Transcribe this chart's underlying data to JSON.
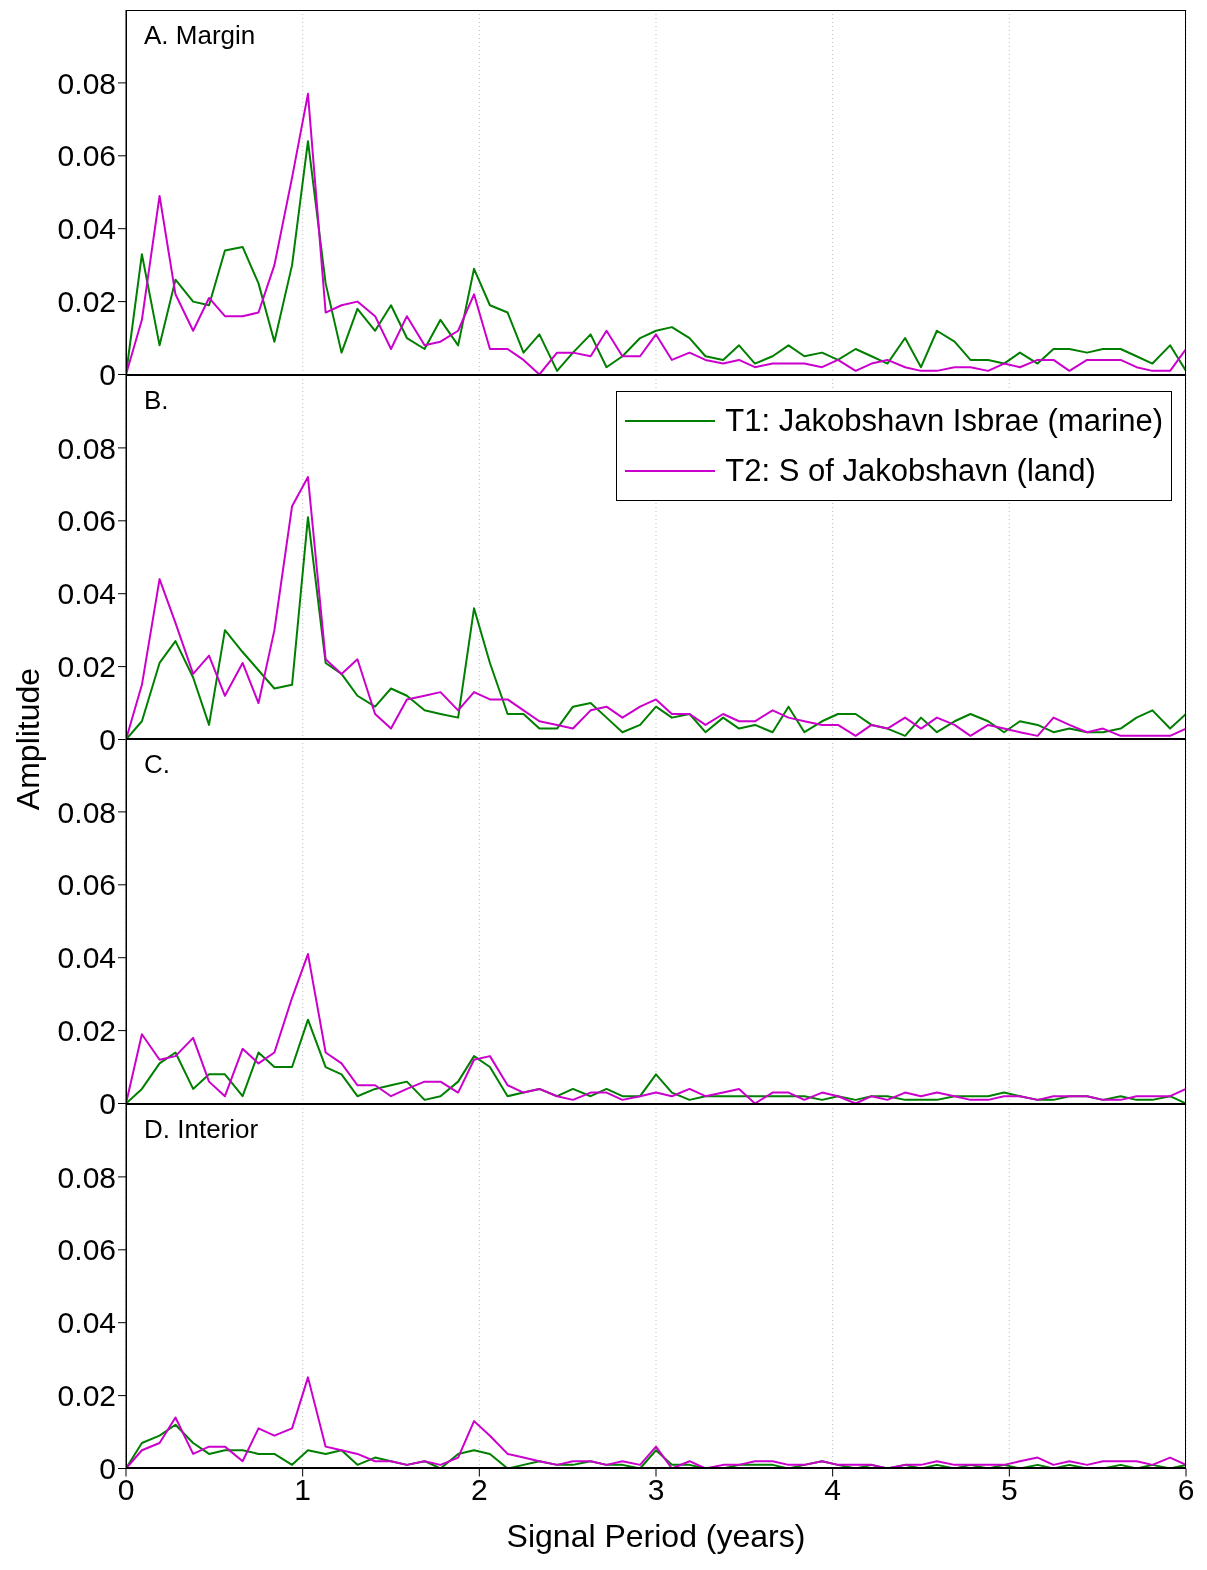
{
  "chart_data": [
    {
      "type": "line",
      "title": "A. Margin",
      "tick_labels": "y",
      "grid": "x",
      "xlim": [
        0,
        6
      ],
      "xticks": [
        0,
        1,
        2,
        3,
        4,
        5,
        6
      ],
      "ylim": [
        0,
        0.1
      ],
      "yticks": [
        0,
        0.02,
        0.04,
        0.06,
        0.08
      ],
      "x": [
        0,
        0.09,
        0.19,
        0.28,
        0.38,
        0.47,
        0.56,
        0.66,
        0.75,
        0.84,
        0.94,
        1.03,
        1.13,
        1.22,
        1.31,
        1.41,
        1.5,
        1.59,
        1.69,
        1.78,
        1.88,
        1.97,
        2.06,
        2.16,
        2.25,
        2.34,
        2.44,
        2.53,
        2.63,
        2.72,
        2.81,
        2.91,
        3.0,
        3.09,
        3.19,
        3.28,
        3.38,
        3.47,
        3.56,
        3.66,
        3.75,
        3.84,
        3.94,
        4.03,
        4.13,
        4.22,
        4.31,
        4.41,
        4.5,
        4.59,
        4.69,
        4.78,
        4.88,
        4.97,
        5.06,
        5.16,
        5.25,
        5.34,
        5.44,
        5.53,
        5.63,
        5.72,
        5.81,
        5.91,
        6.0
      ],
      "series": [
        {
          "color": "#007f00",
          "values": [
            0,
            0.033,
            0.008,
            0.026,
            0.02,
            0.019,
            0.034,
            0.035,
            0.025,
            0.009,
            0.03,
            0.064,
            0.025,
            0.006,
            0.018,
            0.012,
            0.019,
            0.01,
            0.007,
            0.015,
            0.008,
            0.029,
            0.019,
            0.017,
            0.006,
            0.011,
            0.001,
            0.006,
            0.011,
            0.002,
            0.005,
            0.01,
            0.012,
            0.013,
            0.01,
            0.005,
            0.004,
            0.008,
            0.003,
            0.005,
            0.008,
            0.005,
            0.006,
            0.004,
            0.007,
            0.005,
            0.003,
            0.01,
            0.002,
            0.012,
            0.009,
            0.004,
            0.004,
            0.003,
            0.006,
            0.003,
            0.007,
            0.007,
            0.006,
            0.007,
            0.007,
            0.005,
            0.003,
            0.008,
            0.001
          ]
        },
        {
          "color": "#cc00cc",
          "values": [
            0,
            0.015,
            0.049,
            0.022,
            0.012,
            0.021,
            0.016,
            0.016,
            0.017,
            0.03,
            0.054,
            0.077,
            0.017,
            0.019,
            0.02,
            0.016,
            0.007,
            0.016,
            0.008,
            0.009,
            0.012,
            0.022,
            0.007,
            0.007,
            0.004,
            0.0,
            0.006,
            0.006,
            0.005,
            0.012,
            0.005,
            0.005,
            0.011,
            0.004,
            0.006,
            0.004,
            0.003,
            0.004,
            0.002,
            0.003,
            0.003,
            0.003,
            0.002,
            0.004,
            0.001,
            0.003,
            0.004,
            0.002,
            0.001,
            0.001,
            0.002,
            0.002,
            0.001,
            0.003,
            0.002,
            0.004,
            0.004,
            0.001,
            0.004,
            0.004,
            0.004,
            0.002,
            0.001,
            0.001,
            0.007
          ]
        }
      ]
    },
    {
      "type": "line",
      "title": "B.",
      "ylabel": "Amplitude",
      "legend": "top right",
      "tick_labels": "y",
      "grid": "x",
      "xlim": [
        0,
        6
      ],
      "xticks": [
        0,
        1,
        2,
        3,
        4,
        5,
        6
      ],
      "ylim": [
        0,
        0.1
      ],
      "yticks": [
        0,
        0.02,
        0.04,
        0.06,
        0.08
      ],
      "x": [
        0,
        0.09,
        0.19,
        0.28,
        0.38,
        0.47,
        0.56,
        0.66,
        0.75,
        0.84,
        0.94,
        1.03,
        1.13,
        1.22,
        1.31,
        1.41,
        1.5,
        1.59,
        1.69,
        1.78,
        1.88,
        1.97,
        2.06,
        2.16,
        2.25,
        2.34,
        2.44,
        2.53,
        2.63,
        2.72,
        2.81,
        2.91,
        3.0,
        3.09,
        3.19,
        3.28,
        3.38,
        3.47,
        3.56,
        3.66,
        3.75,
        3.84,
        3.94,
        4.03,
        4.13,
        4.22,
        4.31,
        4.41,
        4.5,
        4.59,
        4.69,
        4.78,
        4.88,
        4.97,
        5.06,
        5.16,
        5.25,
        5.34,
        5.44,
        5.53,
        5.63,
        5.72,
        5.81,
        5.91,
        6.0
      ],
      "series": [
        {
          "name": "T1: Jakobshavn Isbrae (marine)",
          "color": "#007f00",
          "values": [
            0,
            0.005,
            0.021,
            0.027,
            0.017,
            0.004,
            0.03,
            0.024,
            0.019,
            0.014,
            0.015,
            0.061,
            0.021,
            0.018,
            0.012,
            0.009,
            0.014,
            0.012,
            0.008,
            0.007,
            0.006,
            0.036,
            0.021,
            0.007,
            0.007,
            0.003,
            0.003,
            0.009,
            0.01,
            0.006,
            0.002,
            0.004,
            0.009,
            0.006,
            0.007,
            0.002,
            0.006,
            0.003,
            0.004,
            0.002,
            0.009,
            0.002,
            0.005,
            0.007,
            0.007,
            0.004,
            0.003,
            0.001,
            0.006,
            0.002,
            0.005,
            0.007,
            0.005,
            0.002,
            0.005,
            0.004,
            0.002,
            0.003,
            0.002,
            0.002,
            0.003,
            0.006,
            0.008,
            0.003,
            0.007
          ]
        },
        {
          "name": "T2: S of Jakobshavn (land)",
          "color": "#cc00cc",
          "values": [
            0,
            0.015,
            0.044,
            0.032,
            0.018,
            0.023,
            0.012,
            0.021,
            0.01,
            0.03,
            0.064,
            0.072,
            0.022,
            0.018,
            0.022,
            0.007,
            0.003,
            0.011,
            0.012,
            0.013,
            0.008,
            0.013,
            0.011,
            0.011,
            0.008,
            0.005,
            0.004,
            0.003,
            0.008,
            0.009,
            0.006,
            0.009,
            0.011,
            0.007,
            0.007,
            0.004,
            0.007,
            0.005,
            0.005,
            0.008,
            0.006,
            0.005,
            0.004,
            0.004,
            0.001,
            0.004,
            0.003,
            0.006,
            0.003,
            0.006,
            0.004,
            0.001,
            0.004,
            0.003,
            0.002,
            0.001,
            0.006,
            0.004,
            0.002,
            0.003,
            0.001,
            0.001,
            0.001,
            0.001,
            0.003
          ]
        }
      ]
    },
    {
      "type": "line",
      "title": "C.",
      "tick_labels": "y",
      "grid": "x",
      "xlim": [
        0,
        6
      ],
      "xticks": [
        0,
        1,
        2,
        3,
        4,
        5,
        6
      ],
      "ylim": [
        0,
        0.1
      ],
      "yticks": [
        0,
        0.02,
        0.04,
        0.06,
        0.08
      ],
      "x": [
        0,
        0.09,
        0.19,
        0.28,
        0.38,
        0.47,
        0.56,
        0.66,
        0.75,
        0.84,
        0.94,
        1.03,
        1.13,
        1.22,
        1.31,
        1.41,
        1.5,
        1.59,
        1.69,
        1.78,
        1.88,
        1.97,
        2.06,
        2.16,
        2.25,
        2.34,
        2.44,
        2.53,
        2.63,
        2.72,
        2.81,
        2.91,
        3.0,
        3.09,
        3.19,
        3.28,
        3.38,
        3.47,
        3.56,
        3.66,
        3.75,
        3.84,
        3.94,
        4.03,
        4.13,
        4.22,
        4.31,
        4.41,
        4.5,
        4.59,
        4.69,
        4.78,
        4.88,
        4.97,
        5.06,
        5.16,
        5.25,
        5.34,
        5.44,
        5.53,
        5.63,
        5.72,
        5.81,
        5.91,
        6.0
      ],
      "series": [
        {
          "color": "#007f00",
          "values": [
            0,
            0.004,
            0.011,
            0.014,
            0.004,
            0.008,
            0.008,
            0.002,
            0.014,
            0.01,
            0.01,
            0.023,
            0.01,
            0.008,
            0.002,
            0.004,
            0.005,
            0.006,
            0.001,
            0.002,
            0.006,
            0.013,
            0.01,
            0.002,
            0.003,
            0.004,
            0.002,
            0.004,
            0.002,
            0.004,
            0.002,
            0.002,
            0.008,
            0.003,
            0.001,
            0.002,
            0.002,
            0.002,
            0.002,
            0.002,
            0.002,
            0.002,
            0.001,
            0.002,
            0.001,
            0.002,
            0.002,
            0.001,
            0.001,
            0.001,
            0.002,
            0.002,
            0.002,
            0.003,
            0.002,
            0.001,
            0.001,
            0.002,
            0.002,
            0.001,
            0.002,
            0.001,
            0.001,
            0.002,
            0.0
          ]
        },
        {
          "color": "#cc00cc",
          "values": [
            0,
            0.019,
            0.012,
            0.013,
            0.018,
            0.006,
            0.002,
            0.015,
            0.011,
            0.014,
            0.029,
            0.041,
            0.014,
            0.011,
            0.005,
            0.005,
            0.002,
            0.004,
            0.006,
            0.006,
            0.003,
            0.012,
            0.013,
            0.005,
            0.003,
            0.004,
            0.002,
            0.001,
            0.003,
            0.003,
            0.001,
            0.002,
            0.003,
            0.002,
            0.004,
            0.002,
            0.003,
            0.004,
            0.0,
            0.003,
            0.003,
            0.001,
            0.003,
            0.002,
            0.0,
            0.002,
            0.001,
            0.003,
            0.002,
            0.003,
            0.002,
            0.001,
            0.001,
            0.002,
            0.002,
            0.001,
            0.002,
            0.002,
            0.002,
            0.001,
            0.001,
            0.002,
            0.002,
            0.002,
            0.004
          ]
        }
      ]
    },
    {
      "type": "line",
      "title": "D. Interior",
      "xlabel": "Signal Period (years)",
      "grid": "x",
      "xlim": [
        0,
        6
      ],
      "xticks": [
        0,
        1,
        2,
        3,
        4,
        5,
        6
      ],
      "ylim": [
        0,
        0.1
      ],
      "yticks": [
        0,
        0.02,
        0.04,
        0.06,
        0.08
      ],
      "x": [
        0,
        0.09,
        0.19,
        0.28,
        0.38,
        0.47,
        0.56,
        0.66,
        0.75,
        0.84,
        0.94,
        1.03,
        1.13,
        1.22,
        1.31,
        1.41,
        1.5,
        1.59,
        1.69,
        1.78,
        1.88,
        1.97,
        2.06,
        2.16,
        2.25,
        2.34,
        2.44,
        2.53,
        2.63,
        2.72,
        2.81,
        2.91,
        3.0,
        3.09,
        3.19,
        3.28,
        3.38,
        3.47,
        3.56,
        3.66,
        3.75,
        3.84,
        3.94,
        4.03,
        4.13,
        4.22,
        4.31,
        4.41,
        4.5,
        4.59,
        4.69,
        4.78,
        4.88,
        4.97,
        5.06,
        5.16,
        5.25,
        5.34,
        5.44,
        5.53,
        5.63,
        5.72,
        5.81,
        5.91,
        6.0
      ],
      "series": [
        {
          "color": "#007f00",
          "values": [
            0,
            0.007,
            0.009,
            0.012,
            0.007,
            0.004,
            0.005,
            0.005,
            0.004,
            0.004,
            0.001,
            0.005,
            0.004,
            0.005,
            0.001,
            0.003,
            0.002,
            0.001,
            0.002,
            0.0,
            0.004,
            0.005,
            0.004,
            0.0,
            0.001,
            0.002,
            0.001,
            0.001,
            0.002,
            0.001,
            0.001,
            0.0,
            0.005,
            0.001,
            0.001,
            0.0,
            0.0,
            0.001,
            0.001,
            0.001,
            0.0,
            0.001,
            0.002,
            0.001,
            0.0,
            0.001,
            0.0,
            0.001,
            0.0,
            0.001,
            0.0,
            0.001,
            0.0,
            0.001,
            0.0,
            0.001,
            0.0,
            0.001,
            0.0,
            0.0,
            0.001,
            0.0,
            0.001,
            0.0,
            0.001
          ]
        },
        {
          "color": "#cc00cc",
          "values": [
            0,
            0.005,
            0.007,
            0.014,
            0.004,
            0.006,
            0.006,
            0.002,
            0.011,
            0.009,
            0.011,
            0.025,
            0.006,
            0.005,
            0.004,
            0.002,
            0.002,
            0.001,
            0.002,
            0.001,
            0.003,
            0.013,
            0.009,
            0.004,
            0.003,
            0.002,
            0.001,
            0.002,
            0.002,
            0.001,
            0.002,
            0.001,
            0.006,
            0.0,
            0.002,
            0.0,
            0.001,
            0.001,
            0.002,
            0.002,
            0.001,
            0.001,
            0.002,
            0.001,
            0.001,
            0.001,
            0.0,
            0.001,
            0.001,
            0.002,
            0.001,
            0.001,
            0.001,
            0.001,
            0.002,
            0.003,
            0.001,
            0.002,
            0.001,
            0.002,
            0.002,
            0.002,
            0.001,
            0.003,
            0.001
          ]
        }
      ]
    }
  ]
}
